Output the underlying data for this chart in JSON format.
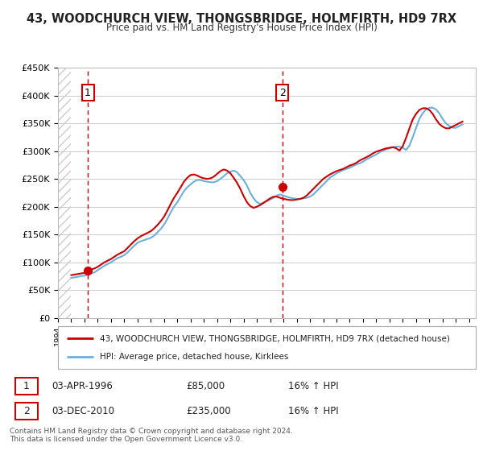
{
  "title": "43, WOODCHURCH VIEW, THONGSBRIDGE, HOLMFIRTH, HD9 7RX",
  "subtitle": "Price paid vs. HM Land Registry's House Price Index (HPI)",
  "ylabel_ticks": [
    "£0",
    "£50K",
    "£100K",
    "£150K",
    "£200K",
    "£250K",
    "£300K",
    "£350K",
    "£400K",
    "£450K"
  ],
  "ylim": [
    0,
    450000
  ],
  "xlim_start": 1994.0,
  "xlim_end": 2025.5,
  "legend_line1": "43, WOODCHURCH VIEW, THONGSBRIDGE, HOLMFIRTH, HD9 7RX (detached house)",
  "legend_line2": "HPI: Average price, detached house, Kirklees",
  "sale1_label": "1",
  "sale1_date": "03-APR-1996",
  "sale1_price": "£85,000",
  "sale1_hpi": "16% ↑ HPI",
  "sale2_label": "2",
  "sale2_date": "03-DEC-2010",
  "sale2_price": "£235,000",
  "sale2_hpi": "16% ↑ HPI",
  "footer": "Contains HM Land Registry data © Crown copyright and database right 2024.\nThis data is licensed under the Open Government Licence v3.0.",
  "hpi_color": "#6ab0de",
  "price_color": "#cc0000",
  "sale_marker_color": "#cc0000",
  "vline_color": "#cc0000",
  "grid_color": "#cccccc",
  "bg_color": "#ffffff",
  "plot_bg": "#ffffff",
  "sale1_x": 1996.25,
  "sale1_y": 85000,
  "sale2_x": 2010.92,
  "sale2_y": 235000,
  "hpi_data_x": [
    1995.0,
    1995.25,
    1995.5,
    1995.75,
    1996.0,
    1996.25,
    1996.5,
    1996.75,
    1997.0,
    1997.25,
    1997.5,
    1997.75,
    1998.0,
    1998.25,
    1998.5,
    1998.75,
    1999.0,
    1999.25,
    1999.5,
    1999.75,
    2000.0,
    2000.25,
    2000.5,
    2000.75,
    2001.0,
    2001.25,
    2001.5,
    2001.75,
    2002.0,
    2002.25,
    2002.5,
    2002.75,
    2003.0,
    2003.25,
    2003.5,
    2003.75,
    2004.0,
    2004.25,
    2004.5,
    2004.75,
    2005.0,
    2005.25,
    2005.5,
    2005.75,
    2006.0,
    2006.25,
    2006.5,
    2006.75,
    2007.0,
    2007.25,
    2007.5,
    2007.75,
    2008.0,
    2008.25,
    2008.5,
    2008.75,
    2009.0,
    2009.25,
    2009.5,
    2009.75,
    2010.0,
    2010.25,
    2010.5,
    2010.75,
    2011.0,
    2011.25,
    2011.5,
    2011.75,
    2012.0,
    2012.25,
    2012.5,
    2012.75,
    2013.0,
    2013.25,
    2013.5,
    2013.75,
    2014.0,
    2014.25,
    2014.5,
    2014.75,
    2015.0,
    2015.25,
    2015.5,
    2015.75,
    2016.0,
    2016.25,
    2016.5,
    2016.75,
    2017.0,
    2017.25,
    2017.5,
    2017.75,
    2018.0,
    2018.25,
    2018.5,
    2018.75,
    2019.0,
    2019.25,
    2019.5,
    2019.75,
    2020.0,
    2020.25,
    2020.5,
    2020.75,
    2021.0,
    2021.25,
    2021.5,
    2021.75,
    2022.0,
    2022.25,
    2022.5,
    2022.75,
    2023.0,
    2023.25,
    2023.5,
    2023.75,
    2024.0,
    2024.25,
    2024.5
  ],
  "hpi_data_y": [
    72000,
    73000,
    74000,
    75500,
    76000,
    78000,
    80000,
    82000,
    86000,
    90000,
    94000,
    97000,
    100000,
    104000,
    108000,
    110000,
    113000,
    118000,
    124000,
    130000,
    135000,
    138000,
    140000,
    142000,
    144000,
    148000,
    154000,
    160000,
    168000,
    178000,
    190000,
    200000,
    208000,
    218000,
    228000,
    235000,
    240000,
    245000,
    248000,
    248000,
    246000,
    245000,
    244000,
    244000,
    246000,
    250000,
    255000,
    260000,
    263000,
    265000,
    262000,
    255000,
    248000,
    238000,
    225000,
    215000,
    208000,
    205000,
    207000,
    210000,
    213000,
    216000,
    220000,
    222000,
    220000,
    218000,
    216000,
    215000,
    214000,
    214000,
    215000,
    216000,
    218000,
    222000,
    228000,
    234000,
    240000,
    246000,
    252000,
    256000,
    260000,
    263000,
    266000,
    268000,
    270000,
    273000,
    276000,
    278000,
    281000,
    285000,
    288000,
    291000,
    294000,
    298000,
    301000,
    303000,
    305000,
    307000,
    308000,
    308000,
    306000,
    302000,
    310000,
    325000,
    342000,
    358000,
    368000,
    375000,
    378000,
    378000,
    375000,
    368000,
    358000,
    350000,
    345000,
    342000,
    342000,
    345000,
    348000
  ],
  "price_data_x": [
    1995.0,
    1995.25,
    1995.5,
    1995.75,
    1996.0,
    1996.25,
    1996.5,
    1996.75,
    1997.0,
    1997.25,
    1997.5,
    1997.75,
    1998.0,
    1998.25,
    1998.5,
    1998.75,
    1999.0,
    1999.25,
    1999.5,
    1999.75,
    2000.0,
    2000.25,
    2000.5,
    2000.75,
    2001.0,
    2001.25,
    2001.5,
    2001.75,
    2002.0,
    2002.25,
    2002.5,
    2002.75,
    2003.0,
    2003.25,
    2003.5,
    2003.75,
    2004.0,
    2004.25,
    2004.5,
    2004.75,
    2005.0,
    2005.25,
    2005.5,
    2005.75,
    2006.0,
    2006.25,
    2006.5,
    2006.75,
    2007.0,
    2007.25,
    2007.5,
    2007.75,
    2008.0,
    2008.25,
    2008.5,
    2008.75,
    2009.0,
    2009.25,
    2009.5,
    2009.75,
    2010.0,
    2010.25,
    2010.5,
    2010.75,
    2011.0,
    2011.25,
    2011.5,
    2011.75,
    2012.0,
    2012.25,
    2012.5,
    2012.75,
    2013.0,
    2013.25,
    2013.5,
    2013.75,
    2014.0,
    2014.25,
    2014.5,
    2014.75,
    2015.0,
    2015.25,
    2015.5,
    2015.75,
    2016.0,
    2016.25,
    2016.5,
    2016.75,
    2017.0,
    2017.25,
    2017.5,
    2017.75,
    2018.0,
    2018.25,
    2018.5,
    2018.75,
    2019.0,
    2019.25,
    2019.5,
    2019.75,
    2020.0,
    2020.25,
    2020.5,
    2020.75,
    2021.0,
    2021.25,
    2021.5,
    2021.75,
    2022.0,
    2022.25,
    2022.5,
    2022.75,
    2023.0,
    2023.25,
    2023.5,
    2023.75,
    2024.0,
    2024.25,
    2024.5
  ],
  "price_data_y": [
    77000,
    78000,
    79000,
    80000,
    81000,
    85000,
    87000,
    89000,
    92000,
    96000,
    100000,
    103000,
    106000,
    110000,
    114000,
    117000,
    120000,
    126000,
    132000,
    138000,
    143000,
    147000,
    150000,
    153000,
    156000,
    161000,
    167000,
    174000,
    182000,
    193000,
    205000,
    216000,
    225000,
    235000,
    245000,
    252000,
    257000,
    258000,
    256000,
    253000,
    251000,
    250000,
    251000,
    254000,
    259000,
    264000,
    267000,
    265000,
    260000,
    252000,
    243000,
    232000,
    219000,
    208000,
    201000,
    198000,
    200000,
    203000,
    207000,
    211000,
    215000,
    218000,
    218000,
    216000,
    214000,
    213000,
    212000,
    212000,
    213000,
    214000,
    216000,
    220000,
    226000,
    232000,
    238000,
    244000,
    250000,
    254000,
    258000,
    261000,
    264000,
    266000,
    268000,
    271000,
    274000,
    276000,
    279000,
    283000,
    286000,
    289000,
    292000,
    296000,
    299000,
    301000,
    303000,
    305000,
    306000,
    307000,
    305000,
    301000,
    309000,
    324000,
    341000,
    357000,
    367000,
    374000,
    377000,
    377000,
    374000,
    367000,
    357000,
    349000,
    344000,
    341000,
    341000,
    344000,
    347000,
    350000,
    353000
  ]
}
